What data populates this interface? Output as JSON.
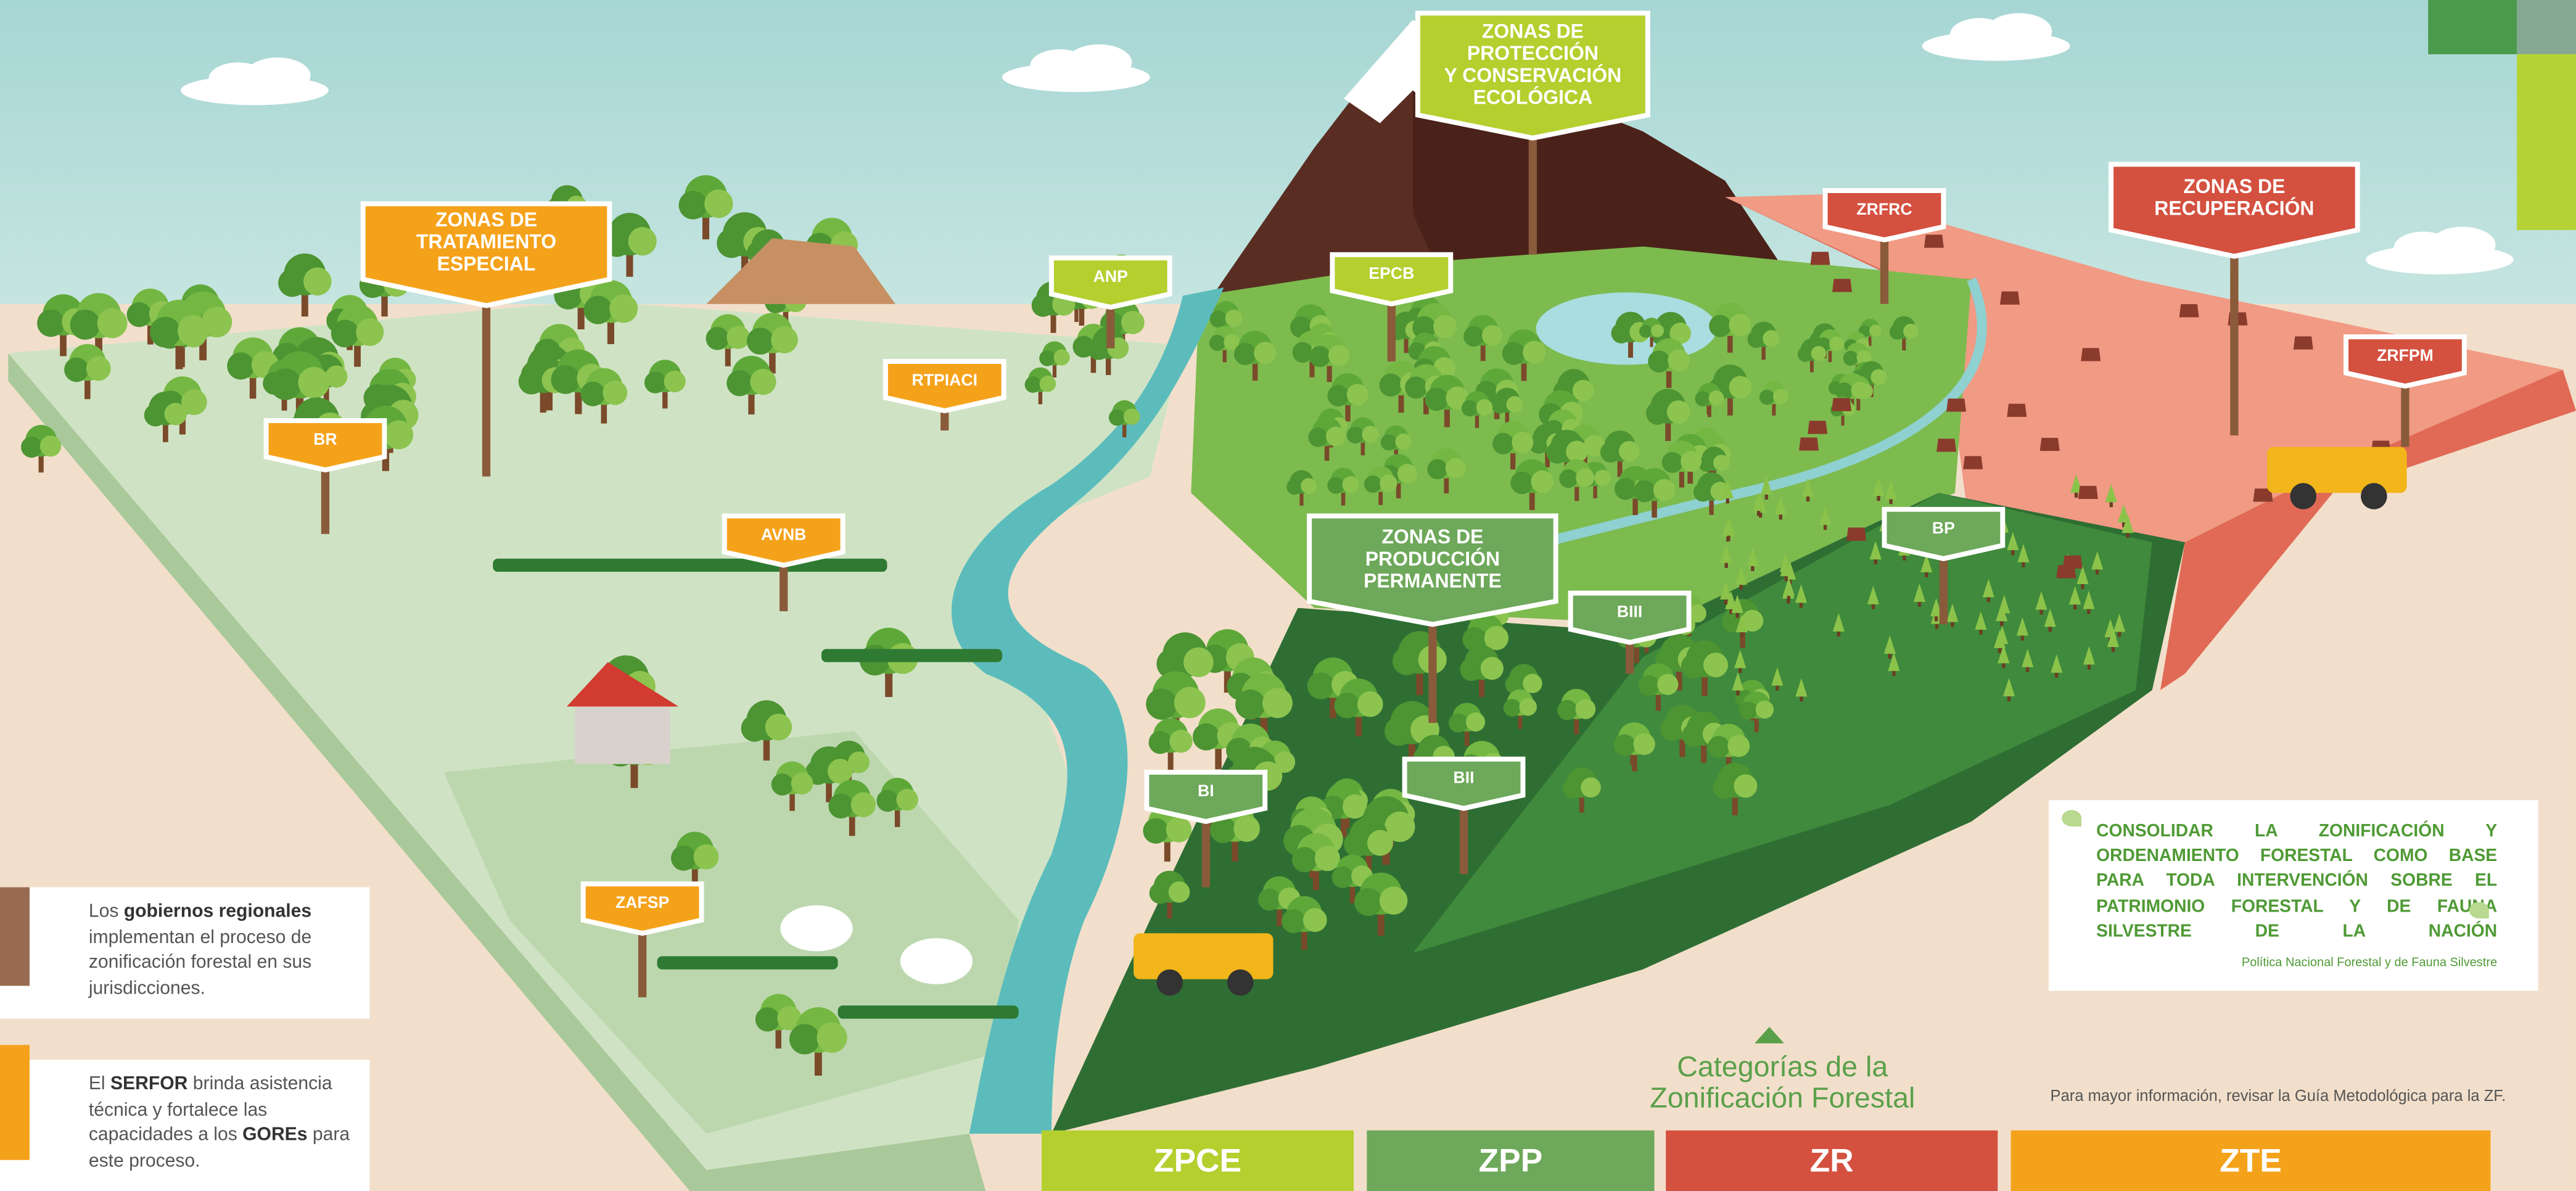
{
  "zone_signs": [
    {
      "lines": [
        "ZONAS DE",
        "TRATAMIENTO",
        "ESPECIAL"
      ],
      "color": "#f5a21b"
    },
    {
      "lines": [
        "ZONAS DE",
        "PROTECCIÓN",
        "Y CONSERVACIÓN",
        "ECOLÓGICA"
      ],
      "color": "#b5cf2f"
    },
    {
      "lines": [
        "ZONAS DE",
        "PRODUCCIÓN",
        "PERMANENTE"
      ],
      "color": "#6ea85a"
    },
    {
      "lines": [
        "ZONAS DE",
        "RECUPERACIÓN"
      ],
      "color": "#d4503f"
    }
  ],
  "labels": [
    {
      "text": "BR",
      "color": "#f5a21b"
    },
    {
      "text": "RTPIACI",
      "color": "#f5a21b"
    },
    {
      "text": "AVNB",
      "color": "#f5a21b"
    },
    {
      "text": "ZAFSP",
      "color": "#f5a21b"
    },
    {
      "text": "ANP",
      "color": "#b5cf2f"
    },
    {
      "text": "EPCB",
      "color": "#b5cf2f"
    },
    {
      "text": "BIII",
      "color": "#6ea85a"
    },
    {
      "text": "BI",
      "color": "#6ea85a"
    },
    {
      "text": "BII",
      "color": "#6ea85a"
    },
    {
      "text": "BP",
      "color": "#6ea85a"
    },
    {
      "text": "ZRFRC",
      "color": "#d4503f"
    },
    {
      "text": "ZRFPM",
      "color": "#d4503f"
    }
  ],
  "info_boxes": [
    {
      "runs": [
        {
          "text": "Los "
        },
        {
          "text": "gobiernos regionales",
          "bold": true
        },
        {
          "text": " implementan el proceso de zonificación forestal en sus jurisdicciones."
        }
      ]
    },
    {
      "runs": [
        {
          "text": "El "
        },
        {
          "text": "SERFOR",
          "bold": true
        },
        {
          "text": " brinda asistencia técnica y fortalece las capacidades a los "
        },
        {
          "text": "GOREs",
          "bold": true
        },
        {
          "text": " para este proceso."
        }
      ]
    }
  ],
  "quote": {
    "text": "CONSOLIDAR LA ZONIFICACIÓN Y ORDENAMIENTO FORESTAL COMO BASE PARA TODA INTERVENCIÓN SOBRE EL PATRIMONIO FORESTAL Y DE FAUNA SILVESTRE DE LA NACIÓN",
    "source": "Política Nacional Forestal y de Fauna Silvestre"
  },
  "categories_title": [
    "Categorías de la",
    "Zonificación Forestal"
  ],
  "note": "Para mayor información, revisar la Guía Metodológica para la ZF.",
  "categories": [
    {
      "code": "ZPCE",
      "color": "#b5cf2f"
    },
    {
      "code": "ZPP",
      "color": "#6ea85a"
    },
    {
      "code": "ZR",
      "color": "#d4503f"
    },
    {
      "code": "ZTE",
      "color": "#f5a21b"
    }
  ]
}
